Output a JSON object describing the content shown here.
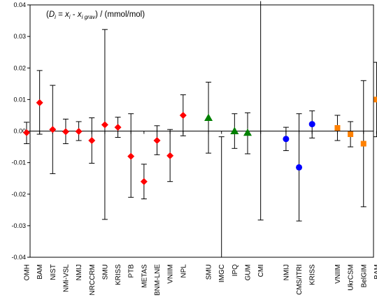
{
  "chart_data": {
    "type": "scatter",
    "y_label": {
      "paren_open": "(",
      "d": "D",
      "i1": "i",
      "eq": " = ",
      "x": "x",
      "i2": "i",
      "minus": " - ",
      "x2": "x",
      "grav": "i grav",
      "close": ")",
      "units": " / (mmol/mol)"
    },
    "ylim": [
      -0.04,
      0.04
    ],
    "yticks": [
      -0.04,
      -0.03,
      -0.02,
      -0.01,
      0.0,
      0.01,
      0.02,
      0.03,
      0.04
    ],
    "ytick_labels": [
      "-0.04",
      "-0.03",
      "-0.02",
      "-0.01",
      "0.00",
      "0.01",
      "0.02",
      "0.03",
      "0.04"
    ],
    "grid": false,
    "legend": "none",
    "categories": [
      "OMH",
      "BAM",
      "NIST",
      "NMi-VSL",
      "NMIJ",
      "NRCCRM",
      "SMU",
      "KRISS",
      "PTB",
      "METAS",
      "BNM-LNE",
      "VNIIM",
      "NPL",
      "SMU",
      "IMGC",
      "IPQ",
      "GUM",
      "CMI",
      "NMIJ",
      "CMS/ITRI",
      "KRISS",
      "VNIIM",
      "UkrCSM",
      "BelGIM",
      "BAM"
    ],
    "gap_after_index": [
      12,
      17,
      20
    ],
    "vertical_line_at_category": 17,
    "series": [
      {
        "marker": "diamond",
        "color": "#ff0000",
        "points": [
          {
            "category": "OMH",
            "y": -0.0005,
            "lo": -0.004,
            "hi": 0.0028
          },
          {
            "category": "BAM",
            "y": 0.009,
            "lo": -0.001,
            "hi": 0.0192
          },
          {
            "category": "NIST",
            "y": 0.0005,
            "lo": -0.0135,
            "hi": 0.0145
          },
          {
            "category": "NMi-VSL",
            "y": -0.0002,
            "lo": -0.004,
            "hi": 0.0038
          },
          {
            "category": "NMIJ",
            "y": -0.0001,
            "lo": -0.003,
            "hi": 0.003
          },
          {
            "category": "NRCCRM",
            "y": -0.003,
            "lo": -0.0102,
            "hi": 0.0042
          },
          {
            "category": "SMU",
            "y": 0.002,
            "lo": -0.028,
            "hi": 0.0322
          },
          {
            "category": "KRISS",
            "y": 0.0012,
            "lo": -0.002,
            "hi": 0.0044
          },
          {
            "category": "PTB",
            "y": -0.008,
            "lo": -0.021,
            "hi": 0.0055
          },
          {
            "category": "METAS",
            "y": -0.016,
            "lo": -0.0215,
            "hi": -0.0105
          },
          {
            "category": "BNM-LNE",
            "y": -0.003,
            "lo": -0.0075,
            "hi": 0.0017
          },
          {
            "category": "VNIIM",
            "y": -0.0078,
            "lo": -0.016,
            "hi": 0.0005
          },
          {
            "category": "NPL",
            "y": 0.005,
            "lo": -0.0015,
            "hi": 0.0115
          }
        ]
      },
      {
        "marker": "triangle",
        "color": "#008000",
        "points": [
          {
            "category": "SMU",
            "y": 0.0042,
            "lo": -0.007,
            "hi": 0.0155
          },
          {
            "category": "IMGC",
            "y": null,
            "lo": -0.04,
            "hi": -0.0018
          },
          {
            "category": "IPQ",
            "y": 0.0,
            "lo": -0.0055,
            "hi": 0.0055
          },
          {
            "category": "GUM",
            "y": -0.0005,
            "lo": -0.0072,
            "hi": 0.0058
          },
          {
            "category": "CMI",
            "y": null,
            "lo": -0.0282,
            "hi": 0.0412
          }
        ]
      },
      {
        "marker": "circle",
        "color": "#0000ff",
        "points": [
          {
            "category": "NMIJ",
            "y": -0.0025,
            "lo": -0.0062,
            "hi": 0.0012
          },
          {
            "category": "CMS/ITRI",
            "y": -0.0115,
            "lo": -0.0285,
            "hi": 0.0055
          },
          {
            "category": "KRISS",
            "y": 0.0022,
            "lo": -0.0022,
            "hi": 0.0064
          }
        ]
      },
      {
        "marker": "square",
        "color": "#ff8000",
        "points": [
          {
            "category": "VNIIM",
            "y": 0.001,
            "lo": -0.003,
            "hi": 0.005
          },
          {
            "category": "UkrCSM",
            "y": -0.001,
            "lo": -0.005,
            "hi": 0.003
          },
          {
            "category": "BelGIM",
            "y": -0.004,
            "lo": -0.024,
            "hi": 0.016
          },
          {
            "category": "BAM",
            "y": 0.01,
            "lo": -0.0018,
            "hi": 0.0218
          }
        ]
      }
    ]
  }
}
